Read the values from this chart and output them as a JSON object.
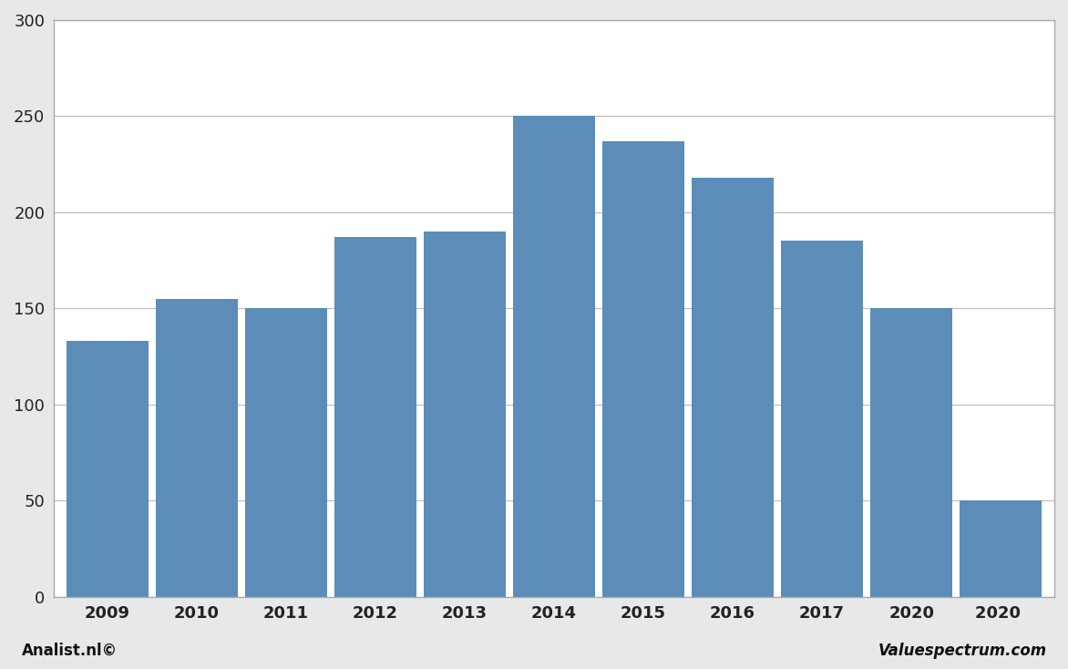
{
  "categories": [
    "2009",
    "2010",
    "2011",
    "2012",
    "2013",
    "2014",
    "2015",
    "2016",
    "2017",
    "2020",
    "2020 "
  ],
  "values": [
    133,
    155,
    150,
    187,
    190,
    250,
    237,
    218,
    185,
    150,
    50
  ],
  "bar_color": "#5b8db8",
  "ylim": [
    0,
    300
  ],
  "yticks": [
    0,
    50,
    100,
    150,
    200,
    250,
    300
  ],
  "background_color": "#e8e8e8",
  "plot_bg_color": "#ffffff",
  "grid_color": "#bbbbbb",
  "border_color": "#aaaaaa",
  "footer_left": "Analist.nl©",
  "footer_right": "Valuespectrum.com",
  "bar_width": 0.92
}
